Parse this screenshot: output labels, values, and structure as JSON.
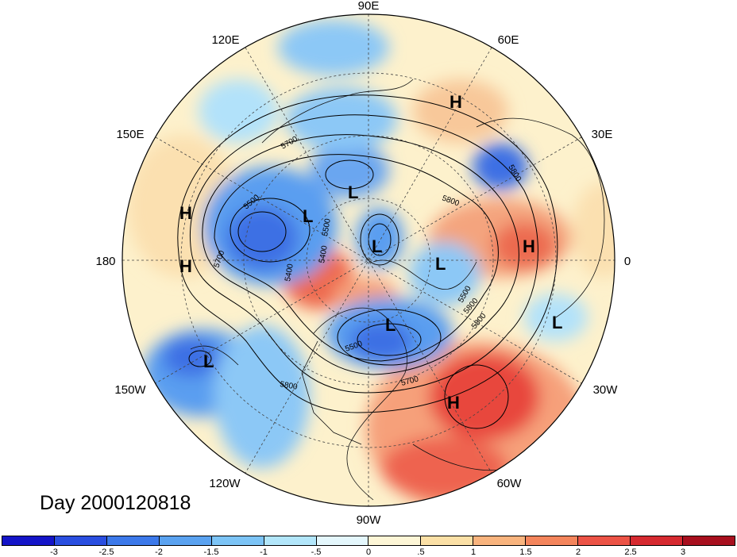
{
  "map": {
    "projection": "north-polar-stereographic",
    "longitude_labels": [
      {
        "text": "90E",
        "lon": "90E"
      },
      {
        "text": "60E",
        "lon": "60E"
      },
      {
        "text": "30E",
        "lon": "30E"
      },
      {
        "text": "0",
        "lon": "0"
      },
      {
        "text": "30W",
        "lon": "30W"
      },
      {
        "text": "60W",
        "lon": "60W"
      },
      {
        "text": "90W",
        "lon": "90W"
      },
      {
        "text": "120W",
        "lon": "120W"
      },
      {
        "text": "150W",
        "lon": "150W"
      },
      {
        "text": "180",
        "lon": "180"
      },
      {
        "text": "150E",
        "lon": "150E"
      },
      {
        "text": "120E",
        "lon": "120E"
      }
    ],
    "pressure_centers": [
      {
        "type": "H",
        "region": "Siberia"
      },
      {
        "type": "H",
        "region": "Western Pacific"
      },
      {
        "type": "H",
        "region": "Central Pacific"
      },
      {
        "type": "H",
        "region": "Eastern Europe"
      },
      {
        "type": "H",
        "region": "Western Atlantic"
      },
      {
        "type": "L",
        "region": "Sea of Okhotsk"
      },
      {
        "type": "L",
        "region": "Bering Sea"
      },
      {
        "type": "L",
        "region": "North Pole"
      },
      {
        "type": "L",
        "region": "Greenland Sea"
      },
      {
        "type": "L",
        "region": "Hudson Bay"
      },
      {
        "type": "L",
        "region": "Northeast Atlantic"
      },
      {
        "type": "L",
        "region": "Northeast Pacific"
      }
    ],
    "contour_labels": [
      "5700",
      "5500",
      "5700",
      "5400",
      "5500",
      "5400",
      "5800",
      "5800",
      "5800",
      "5500",
      "5800",
      "5500",
      "5700",
      "5800"
    ]
  },
  "title": "Day 2000120818",
  "colorbar": {
    "colors": [
      "#1414c8",
      "#2a4ee0",
      "#3c79ea",
      "#5aa2f0",
      "#7cc4f6",
      "#b2e6fa",
      "#e4f7fc",
      "#fdf6d6",
      "#fbe0a6",
      "#f9b47e",
      "#f4855c",
      "#ec5346",
      "#d62a30",
      "#a80f1e"
    ],
    "ticks": [
      "-3",
      "-2.5",
      "-2",
      "-1.5",
      "-1",
      "-.5",
      "0",
      ".5",
      "1",
      "1.5",
      "2",
      "2.5",
      "3"
    ]
  }
}
